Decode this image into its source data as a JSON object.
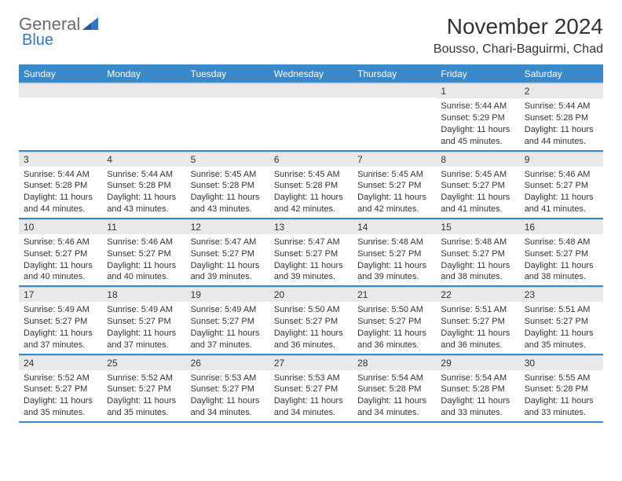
{
  "brand": {
    "general": "General",
    "blue": "Blue"
  },
  "header": {
    "title": "November 2024",
    "location": "Bousso, Chari-Baguirmi, Chad"
  },
  "colors": {
    "header_bg": "#3b88c9",
    "row_divider": "#3b88c9",
    "daynum_bg": "#e9e9e9",
    "text": "#333333"
  },
  "weekdays": [
    "Sunday",
    "Monday",
    "Tuesday",
    "Wednesday",
    "Thursday",
    "Friday",
    "Saturday"
  ],
  "weeks": [
    [
      {
        "n": "",
        "sr": "",
        "ss": "",
        "dl": ""
      },
      {
        "n": "",
        "sr": "",
        "ss": "",
        "dl": ""
      },
      {
        "n": "",
        "sr": "",
        "ss": "",
        "dl": ""
      },
      {
        "n": "",
        "sr": "",
        "ss": "",
        "dl": ""
      },
      {
        "n": "",
        "sr": "",
        "ss": "",
        "dl": ""
      },
      {
        "n": "1",
        "sr": "Sunrise: 5:44 AM",
        "ss": "Sunset: 5:29 PM",
        "dl": "Daylight: 11 hours and 45 minutes."
      },
      {
        "n": "2",
        "sr": "Sunrise: 5:44 AM",
        "ss": "Sunset: 5:28 PM",
        "dl": "Daylight: 11 hours and 44 minutes."
      }
    ],
    [
      {
        "n": "3",
        "sr": "Sunrise: 5:44 AM",
        "ss": "Sunset: 5:28 PM",
        "dl": "Daylight: 11 hours and 44 minutes."
      },
      {
        "n": "4",
        "sr": "Sunrise: 5:44 AM",
        "ss": "Sunset: 5:28 PM",
        "dl": "Daylight: 11 hours and 43 minutes."
      },
      {
        "n": "5",
        "sr": "Sunrise: 5:45 AM",
        "ss": "Sunset: 5:28 PM",
        "dl": "Daylight: 11 hours and 43 minutes."
      },
      {
        "n": "6",
        "sr": "Sunrise: 5:45 AM",
        "ss": "Sunset: 5:28 PM",
        "dl": "Daylight: 11 hours and 42 minutes."
      },
      {
        "n": "7",
        "sr": "Sunrise: 5:45 AM",
        "ss": "Sunset: 5:27 PM",
        "dl": "Daylight: 11 hours and 42 minutes."
      },
      {
        "n": "8",
        "sr": "Sunrise: 5:45 AM",
        "ss": "Sunset: 5:27 PM",
        "dl": "Daylight: 11 hours and 41 minutes."
      },
      {
        "n": "9",
        "sr": "Sunrise: 5:46 AM",
        "ss": "Sunset: 5:27 PM",
        "dl": "Daylight: 11 hours and 41 minutes."
      }
    ],
    [
      {
        "n": "10",
        "sr": "Sunrise: 5:46 AM",
        "ss": "Sunset: 5:27 PM",
        "dl": "Daylight: 11 hours and 40 minutes."
      },
      {
        "n": "11",
        "sr": "Sunrise: 5:46 AM",
        "ss": "Sunset: 5:27 PM",
        "dl": "Daylight: 11 hours and 40 minutes."
      },
      {
        "n": "12",
        "sr": "Sunrise: 5:47 AM",
        "ss": "Sunset: 5:27 PM",
        "dl": "Daylight: 11 hours and 39 minutes."
      },
      {
        "n": "13",
        "sr": "Sunrise: 5:47 AM",
        "ss": "Sunset: 5:27 PM",
        "dl": "Daylight: 11 hours and 39 minutes."
      },
      {
        "n": "14",
        "sr": "Sunrise: 5:48 AM",
        "ss": "Sunset: 5:27 PM",
        "dl": "Daylight: 11 hours and 39 minutes."
      },
      {
        "n": "15",
        "sr": "Sunrise: 5:48 AM",
        "ss": "Sunset: 5:27 PM",
        "dl": "Daylight: 11 hours and 38 minutes."
      },
      {
        "n": "16",
        "sr": "Sunrise: 5:48 AM",
        "ss": "Sunset: 5:27 PM",
        "dl": "Daylight: 11 hours and 38 minutes."
      }
    ],
    [
      {
        "n": "17",
        "sr": "Sunrise: 5:49 AM",
        "ss": "Sunset: 5:27 PM",
        "dl": "Daylight: 11 hours and 37 minutes."
      },
      {
        "n": "18",
        "sr": "Sunrise: 5:49 AM",
        "ss": "Sunset: 5:27 PM",
        "dl": "Daylight: 11 hours and 37 minutes."
      },
      {
        "n": "19",
        "sr": "Sunrise: 5:49 AM",
        "ss": "Sunset: 5:27 PM",
        "dl": "Daylight: 11 hours and 37 minutes."
      },
      {
        "n": "20",
        "sr": "Sunrise: 5:50 AM",
        "ss": "Sunset: 5:27 PM",
        "dl": "Daylight: 11 hours and 36 minutes."
      },
      {
        "n": "21",
        "sr": "Sunrise: 5:50 AM",
        "ss": "Sunset: 5:27 PM",
        "dl": "Daylight: 11 hours and 36 minutes."
      },
      {
        "n": "22",
        "sr": "Sunrise: 5:51 AM",
        "ss": "Sunset: 5:27 PM",
        "dl": "Daylight: 11 hours and 36 minutes."
      },
      {
        "n": "23",
        "sr": "Sunrise: 5:51 AM",
        "ss": "Sunset: 5:27 PM",
        "dl": "Daylight: 11 hours and 35 minutes."
      }
    ],
    [
      {
        "n": "24",
        "sr": "Sunrise: 5:52 AM",
        "ss": "Sunset: 5:27 PM",
        "dl": "Daylight: 11 hours and 35 minutes."
      },
      {
        "n": "25",
        "sr": "Sunrise: 5:52 AM",
        "ss": "Sunset: 5:27 PM",
        "dl": "Daylight: 11 hours and 35 minutes."
      },
      {
        "n": "26",
        "sr": "Sunrise: 5:53 AM",
        "ss": "Sunset: 5:27 PM",
        "dl": "Daylight: 11 hours and 34 minutes."
      },
      {
        "n": "27",
        "sr": "Sunrise: 5:53 AM",
        "ss": "Sunset: 5:27 PM",
        "dl": "Daylight: 11 hours and 34 minutes."
      },
      {
        "n": "28",
        "sr": "Sunrise: 5:54 AM",
        "ss": "Sunset: 5:28 PM",
        "dl": "Daylight: 11 hours and 34 minutes."
      },
      {
        "n": "29",
        "sr": "Sunrise: 5:54 AM",
        "ss": "Sunset: 5:28 PM",
        "dl": "Daylight: 11 hours and 33 minutes."
      },
      {
        "n": "30",
        "sr": "Sunrise: 5:55 AM",
        "ss": "Sunset: 5:28 PM",
        "dl": "Daylight: 11 hours and 33 minutes."
      }
    ]
  ]
}
